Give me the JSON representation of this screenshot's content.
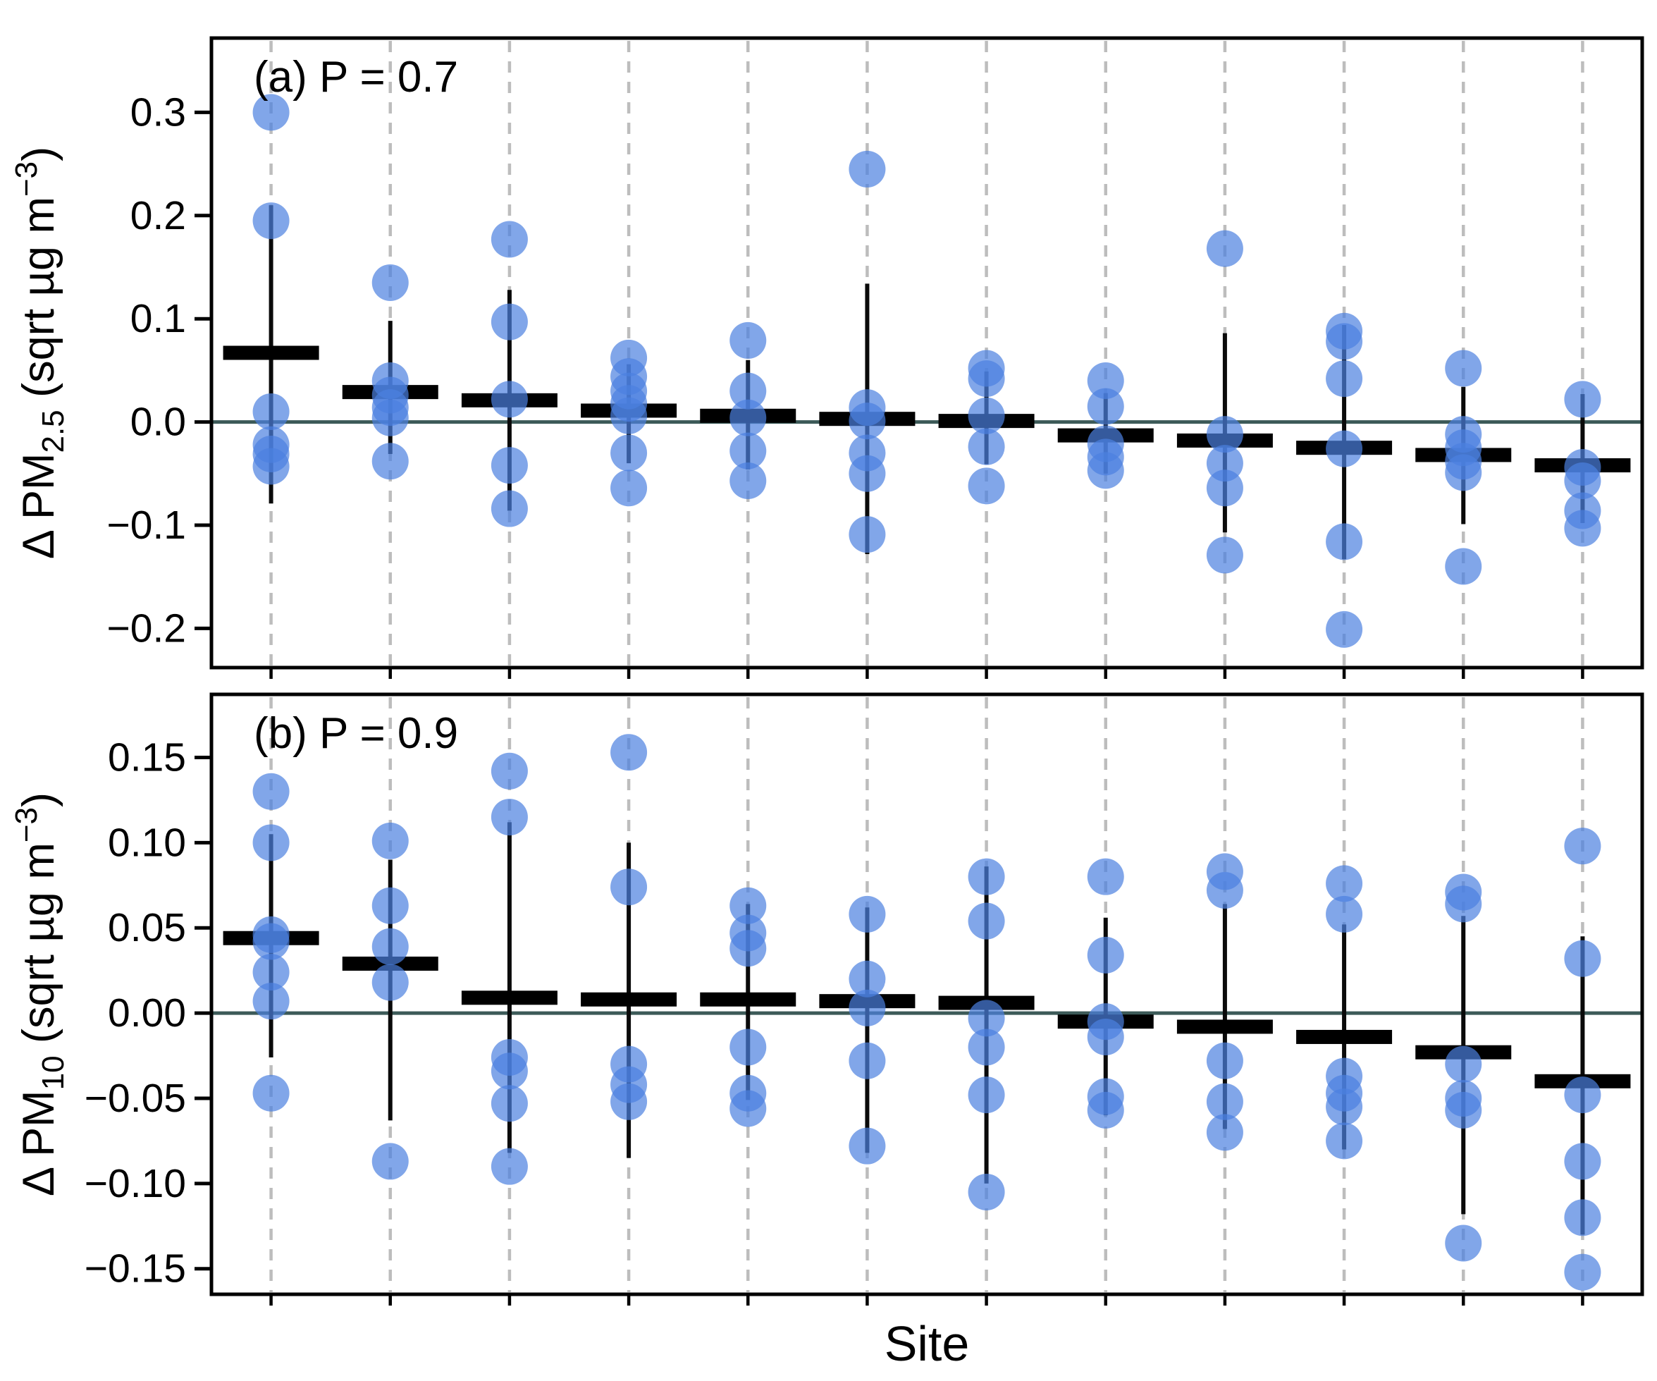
{
  "chart_data": {
    "type": "scatter",
    "title": "",
    "xlabel": "Site",
    "n_sites": 12,
    "x_tick_labels_shown": false,
    "legend": "none",
    "grid": "vertical-dashed-per-site",
    "panels": [
      {
        "id": "a",
        "label": "(a) P = 0.7",
        "ylabel_text": "Δ PM2.5 (sqrt µg m−3)",
        "ylabel_parts": {
          "prefix": "Δ PM",
          "sub": "2.5",
          "mid": " (sqrt µg m",
          "sup": "−3",
          "suffix": ")"
        },
        "yticks": [
          0.3,
          0.2,
          0.1,
          0.0,
          -0.1,
          -0.2
        ],
        "ytick_labels": [
          "0.3",
          "0.2",
          "0.1",
          "0.0",
          "−0.1",
          "−0.2"
        ],
        "ylim": [
          -0.238,
          0.372
        ],
        "zero_line": 0,
        "sites": [
          {
            "site": 1,
            "mean": 0.067,
            "ci": [
              -0.079,
              0.21
            ],
            "points": [
              0.3,
              0.195,
              0.01,
              -0.022,
              -0.031,
              -0.043
            ]
          },
          {
            "site": 2,
            "mean": 0.029,
            "ci": [
              -0.031,
              0.098
            ],
            "points": [
              0.135,
              0.04,
              0.026,
              0.014,
              0.004,
              -0.038
            ]
          },
          {
            "site": 3,
            "mean": 0.021,
            "ci": [
              -0.086,
              0.128
            ],
            "points": [
              0.177,
              0.097,
              0.022,
              -0.042,
              -0.084
            ]
          },
          {
            "site": 4,
            "mean": 0.011,
            "ci": [
              -0.04,
              0.056
            ],
            "points": [
              0.062,
              0.044,
              0.03,
              0.018,
              0.006,
              -0.03,
              -0.064
            ]
          },
          {
            "site": 5,
            "mean": 0.006,
            "ci": [
              -0.046,
              0.06
            ],
            "points": [
              0.079,
              0.03,
              0.004,
              -0.028,
              -0.057
            ]
          },
          {
            "site": 6,
            "mean": 0.003,
            "ci": [
              -0.128,
              0.134
            ],
            "points": [
              0.245,
              0.014,
              0.001,
              -0.03,
              -0.05,
              -0.109
            ]
          },
          {
            "site": 7,
            "mean": 0.001,
            "ci": [
              -0.041,
              0.049
            ],
            "points": [
              0.052,
              0.042,
              0.006,
              -0.024,
              -0.062
            ]
          },
          {
            "site": 8,
            "mean": -0.013,
            "ci": [
              -0.05,
              0.028
            ],
            "points": [
              0.04,
              0.015,
              -0.021,
              -0.034,
              -0.047
            ]
          },
          {
            "site": 9,
            "mean": -0.018,
            "ci": [
              -0.107,
              0.086
            ],
            "points": [
              0.168,
              -0.012,
              -0.04,
              -0.064,
              -0.129
            ]
          },
          {
            "site": 10,
            "mean": -0.025,
            "ci": [
              -0.133,
              0.094
            ],
            "points": [
              0.088,
              0.078,
              0.042,
              -0.026,
              -0.116,
              -0.201
            ]
          },
          {
            "site": 11,
            "mean": -0.032,
            "ci": [
              -0.099,
              0.034
            ],
            "points": [
              0.052,
              -0.012,
              -0.025,
              -0.038,
              -0.049,
              -0.14
            ]
          },
          {
            "site": 12,
            "mean": -0.042,
            "ci": [
              -0.098,
              0.027
            ],
            "points": [
              0.022,
              -0.044,
              -0.057,
              -0.086,
              -0.103
            ]
          }
        ]
      },
      {
        "id": "b",
        "label": "(b) P = 0.9",
        "ylabel_text": "Δ PM10 (sqrt µg m−3)",
        "ylabel_parts": {
          "prefix": "Δ PM",
          "sub": "10",
          "mid": " (sqrt µg m",
          "sup": "−3",
          "suffix": ")"
        },
        "yticks": [
          0.15,
          0.1,
          0.05,
          0.0,
          -0.05,
          -0.1,
          -0.15
        ],
        "ytick_labels": [
          "0.15",
          "0.10",
          "0.05",
          "0.00",
          "−0.05",
          "−0.10",
          "−0.15"
        ],
        "ylim": [
          -0.165,
          0.187
        ],
        "zero_line": 0,
        "sites": [
          {
            "site": 1,
            "mean": 0.044,
            "ci": [
              -0.026,
              0.105
            ],
            "points": [
              0.13,
              0.1,
              0.046,
              0.042,
              0.024,
              0.007,
              -0.047
            ]
          },
          {
            "site": 2,
            "mean": 0.029,
            "ci": [
              -0.063,
              0.09
            ],
            "points": [
              0.101,
              0.063,
              0.039,
              0.018,
              -0.087
            ]
          },
          {
            "site": 3,
            "mean": 0.009,
            "ci": [
              -0.082,
              0.112
            ],
            "points": [
              0.142,
              0.115,
              -0.026,
              -0.034,
              -0.053,
              -0.09
            ]
          },
          {
            "site": 4,
            "mean": 0.008,
            "ci": [
              -0.085,
              0.1
            ],
            "points": [
              0.153,
              0.074,
              -0.03,
              -0.042,
              -0.052
            ]
          },
          {
            "site": 5,
            "mean": 0.008,
            "ci": [
              -0.051,
              0.064
            ],
            "points": [
              0.063,
              0.047,
              0.038,
              -0.02,
              -0.047,
              -0.056
            ]
          },
          {
            "site": 6,
            "mean": 0.007,
            "ci": [
              -0.082,
              0.062
            ],
            "points": [
              0.058,
              0.02,
              0.003,
              -0.028,
              -0.078
            ]
          },
          {
            "site": 7,
            "mean": 0.006,
            "ci": [
              -0.1,
              0.086
            ],
            "points": [
              0.08,
              0.054,
              -0.003,
              -0.02,
              -0.048,
              -0.105
            ]
          },
          {
            "site": 8,
            "mean": -0.005,
            "ci": [
              -0.06,
              0.056
            ],
            "points": [
              0.08,
              0.034,
              -0.005,
              -0.014,
              -0.049,
              -0.057
            ]
          },
          {
            "site": 9,
            "mean": -0.008,
            "ci": [
              -0.068,
              0.064
            ],
            "points": [
              0.083,
              0.072,
              -0.028,
              -0.052,
              -0.07
            ]
          },
          {
            "site": 10,
            "mean": -0.014,
            "ci": [
              -0.08,
              0.052
            ],
            "points": [
              0.076,
              0.058,
              -0.037,
              -0.047,
              -0.055,
              -0.075
            ]
          },
          {
            "site": 11,
            "mean": -0.023,
            "ci": [
              -0.118,
              0.057
            ],
            "points": [
              0.071,
              0.064,
              -0.03,
              -0.05,
              -0.057,
              -0.135
            ]
          },
          {
            "site": 12,
            "mean": -0.04,
            "ci": [
              -0.13,
              0.045
            ],
            "points": [
              0.098,
              0.032,
              -0.048,
              -0.087,
              -0.12,
              -0.152
            ]
          }
        ]
      }
    ],
    "style": {
      "point_color": "#4b80e0",
      "point_opacity": 0.7,
      "zero_line_color": "#3c5a58",
      "dashed_line_color": "#bdbdbd",
      "bar_color": "#000000",
      "error_bar_color": "#0a0a0a",
      "border_color": "#000000",
      "text_color": "#000000",
      "background": "#ffffff"
    }
  }
}
